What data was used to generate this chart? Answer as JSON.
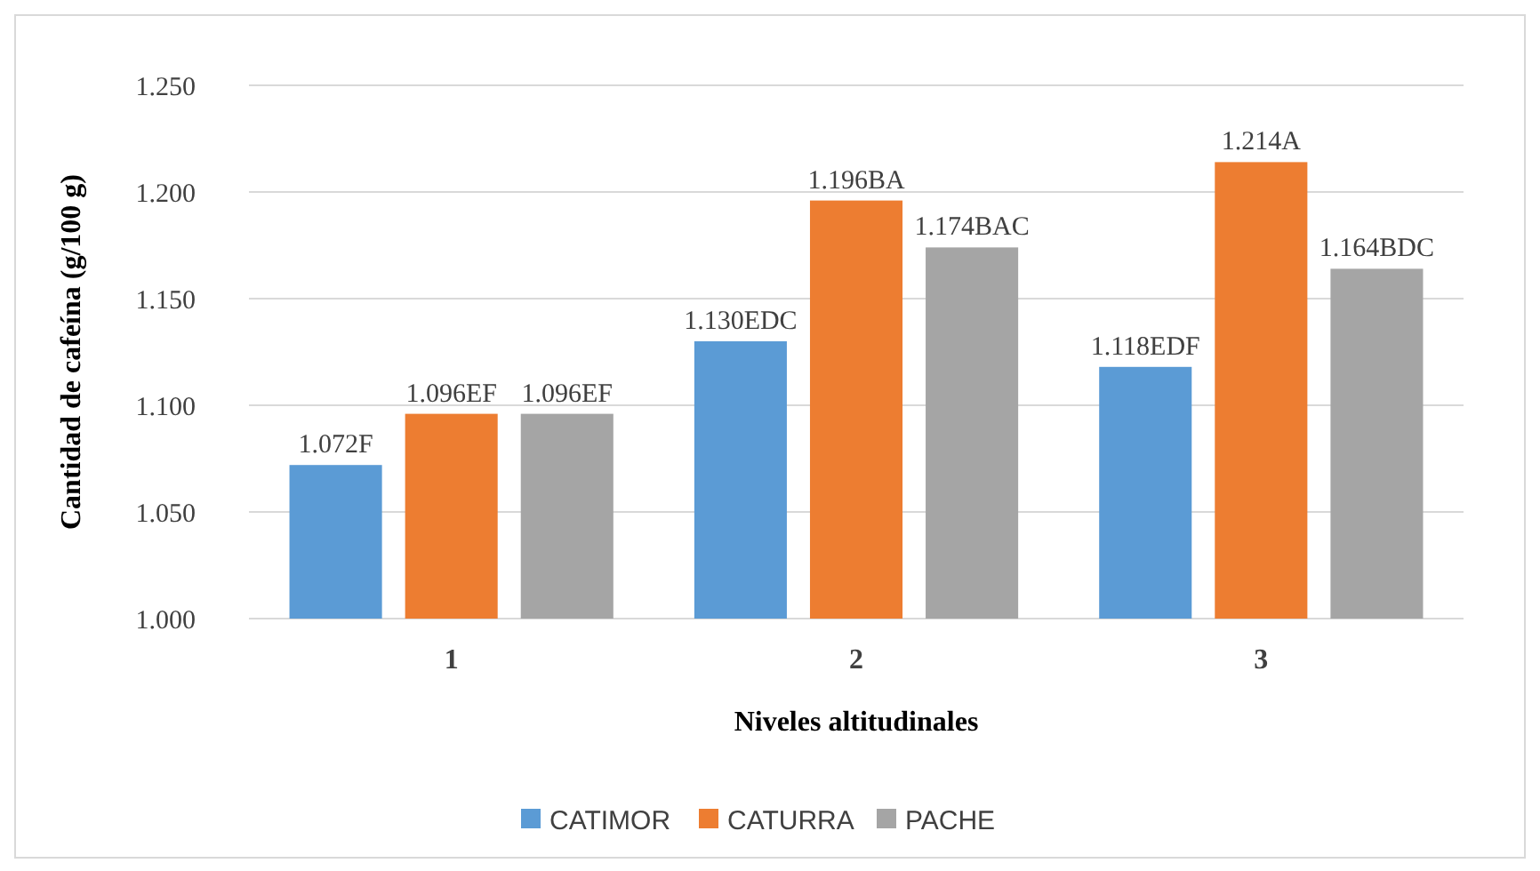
{
  "chart_data": {
    "type": "bar",
    "xlabel": "Niveles altitudinales",
    "ylabel": "Cantidad de cafeína (g/100 g)",
    "categories": [
      "1",
      "2",
      "3"
    ],
    "series": [
      {
        "name": "CATIMOR",
        "color": "#5b9bd5",
        "values": [
          1.072,
          1.13,
          1.118
        ],
        "value_labels": [
          "1.072F",
          "1.130EDC",
          "1.118EDF"
        ]
      },
      {
        "name": "CATURRA",
        "color": "#ed7d31",
        "values": [
          1.096,
          1.196,
          1.214
        ],
        "value_labels": [
          "1.096EF",
          "1.196BA",
          "1.214A"
        ]
      },
      {
        "name": "PACHE",
        "color": "#a5a5a5",
        "values": [
          1.096,
          1.174,
          1.164
        ],
        "value_labels": [
          "1.096EF",
          "1.174BAC",
          "1.164BDC"
        ]
      }
    ],
    "ylim": [
      1.0,
      1.25
    ],
    "yticks": [
      {
        "value": 1.0,
        "label": "1.000"
      },
      {
        "value": 1.05,
        "label": "1.050"
      },
      {
        "value": 1.1,
        "label": "1.100"
      },
      {
        "value": 1.15,
        "label": "1.150"
      },
      {
        "value": 1.2,
        "label": "1.200"
      },
      {
        "value": 1.25,
        "label": "1.250"
      }
    ],
    "grid": "y",
    "legend": "bottom"
  }
}
